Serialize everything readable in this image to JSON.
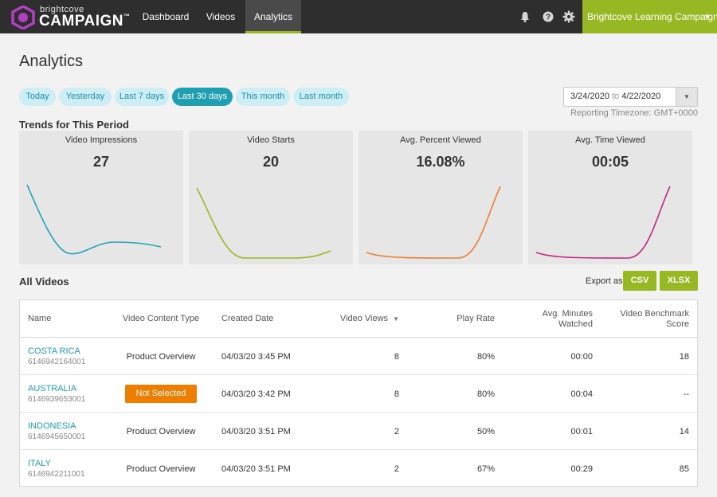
{
  "brand": {
    "line1": "brightcove",
    "line2": "CAMPAIGN",
    "tm": "™"
  },
  "nav": [
    {
      "label": "Dashboard"
    },
    {
      "label": "Videos"
    },
    {
      "label": "Analytics"
    }
  ],
  "header": {
    "campaign": "Brightcove Learning Campaign",
    "caret": "▼"
  },
  "page": {
    "title": "Analytics"
  },
  "ranges": [
    "Today",
    "Yesterday",
    "Last 7 days",
    "Last 30 days",
    "This month",
    "Last month"
  ],
  "active_range": "Last 30 days",
  "date_range": {
    "start": "3/24/2020",
    "sep": "to",
    "end": "4/22/2020",
    "dropdown": "▼"
  },
  "timezone": "Reporting Timezone: GMT+0000",
  "trends": {
    "title": "Trends for This Period",
    "cards": [
      {
        "label": "Video Impressions",
        "value": "27",
        "color": "#22a3b8"
      },
      {
        "label": "Video Starts",
        "value": "20",
        "color": "#98b823"
      },
      {
        "label": "Avg. Percent Viewed",
        "value": "16.08%",
        "color": "#ef7d33"
      },
      {
        "label": "Avg. Time Viewed",
        "value": "00:05",
        "color": "#c2267f"
      }
    ]
  },
  "videos": {
    "title": "All Videos",
    "export_label": "Export as",
    "export_csv": "CSV",
    "export_xlsx": "XLSX",
    "columns": {
      "name": "Name",
      "content_type": "Video Content Type",
      "created": "Created Date",
      "views": "Video Views",
      "sort_icon": "▼",
      "play_rate": "Play Rate",
      "avg_minutes_1": "Avg. Minutes",
      "avg_minutes_2": "Watched",
      "benchmark_1": "Video Benchmark",
      "benchmark_2": "Score"
    },
    "rows": [
      {
        "name": "COSTA RICA",
        "id": "6146942164001",
        "content_type": "Product Overview",
        "created": "04/03/20 3:45 PM",
        "views": "8",
        "play_rate": "80%",
        "avg_minutes": "00:00",
        "benchmark": "18"
      },
      {
        "name": "AUSTRALIA",
        "id": "6146939653001",
        "content_type": "Not Selected",
        "created": "04/03/20 3:42 PM",
        "views": "8",
        "play_rate": "80%",
        "avg_minutes": "00:04",
        "benchmark": "--"
      },
      {
        "name": "INDONESIA",
        "id": "6146945650001",
        "content_type": "Product Overview",
        "created": "04/03/20 3:51 PM",
        "views": "2",
        "play_rate": "50%",
        "avg_minutes": "00:01",
        "benchmark": "14"
      },
      {
        "name": "ITALY",
        "id": "6146942211001",
        "content_type": "Product Overview",
        "created": "04/03/20 3:51 PM",
        "views": "2",
        "play_rate": "67%",
        "avg_minutes": "00:29",
        "benchmark": "85"
      }
    ]
  },
  "colors": {
    "accent_green": "#98b823",
    "accent_teal": "#1e9fb2",
    "badge_orange": "#ef7d00",
    "brand_purple": "#b43fc6"
  },
  "icons": [
    "bell-icon",
    "help-icon",
    "gear-icon",
    "sort-desc-icon",
    "chevron-down-icon"
  ]
}
